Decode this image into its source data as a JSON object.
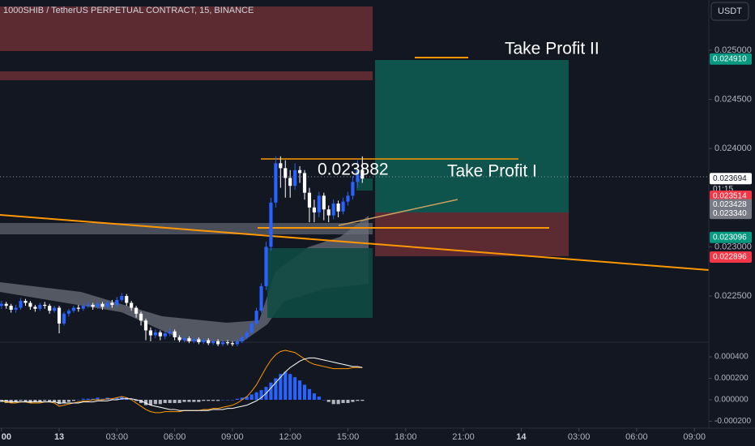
{
  "header": {
    "title": "1000SHIB / TetherUS PERPETUAL CONTRACT, 15, BINANCE",
    "currency": "USDT"
  },
  "chart_data": [
    {
      "type": "candlestick",
      "up_color": "#2962ff",
      "down_color": "#ffffff",
      "open": [
        0.0224,
        0.02242,
        0.0224,
        0.02236,
        0.02238,
        0.02245,
        0.02243,
        0.02239,
        0.02237,
        0.02241,
        0.0224,
        0.02235,
        0.02238,
        0.02222,
        0.02232,
        0.02235,
        0.02238,
        0.02237,
        0.0224,
        0.02241,
        0.02239,
        0.02242,
        0.02239,
        0.02243,
        0.02241,
        0.02246,
        0.0225,
        0.02243,
        0.02238,
        0.02232,
        0.02225,
        0.02215,
        0.0221,
        0.02213,
        0.02209,
        0.02212,
        0.02214,
        0.02208,
        0.02205,
        0.02207,
        0.02204,
        0.02206,
        0.02203,
        0.02205,
        0.02202,
        0.02204,
        0.02201,
        0.02203,
        0.02202,
        0.02201,
        0.02204,
        0.02208,
        0.02213,
        0.02222,
        0.02235,
        0.0226,
        0.023,
        0.02345,
        0.02385,
        0.0238,
        0.0237,
        0.02362,
        0.02378,
        0.02375,
        0.02355,
        0.0234,
        0.02335,
        0.02352,
        0.02338,
        0.02332,
        0.02344,
        0.02336,
        0.02346,
        0.02352,
        0.02366,
        0.02378
      ],
      "high": [
        0.02245,
        0.02244,
        0.02242,
        0.02241,
        0.02248,
        0.02247,
        0.02245,
        0.02241,
        0.02243,
        0.02244,
        0.02242,
        0.0224,
        0.0224,
        0.02234,
        0.02237,
        0.0224,
        0.02241,
        0.02242,
        0.02244,
        0.02243,
        0.02244,
        0.02244,
        0.02245,
        0.02246,
        0.02249,
        0.02253,
        0.02252,
        0.02245,
        0.0224,
        0.02234,
        0.02227,
        0.02218,
        0.02216,
        0.02215,
        0.02214,
        0.02217,
        0.02216,
        0.0221,
        0.02209,
        0.02209,
        0.02208,
        0.02208,
        0.02207,
        0.02207,
        0.02206,
        0.02206,
        0.02205,
        0.02205,
        0.02204,
        0.02206,
        0.0221,
        0.02215,
        0.02224,
        0.02238,
        0.02263,
        0.02305,
        0.0235,
        0.02392,
        0.02392,
        0.02388,
        0.02378,
        0.02385,
        0.02382,
        0.02378,
        0.0236,
        0.02348,
        0.02356,
        0.02355,
        0.02342,
        0.02348,
        0.02347,
        0.0235,
        0.02356,
        0.02372,
        0.02388,
        0.02392
      ],
      "low": [
        0.02237,
        0.02237,
        0.02233,
        0.02233,
        0.02236,
        0.0224,
        0.02236,
        0.02234,
        0.02235,
        0.02237,
        0.02232,
        0.02233,
        0.02212,
        0.0222,
        0.02229,
        0.02233,
        0.02234,
        0.02235,
        0.02238,
        0.02236,
        0.02237,
        0.02236,
        0.02237,
        0.02238,
        0.02239,
        0.02244,
        0.0224,
        0.02235,
        0.02228,
        0.0222,
        0.02205,
        0.02204,
        0.02207,
        0.02205,
        0.02206,
        0.02209,
        0.02205,
        0.02203,
        0.02203,
        0.02202,
        0.02202,
        0.02201,
        0.02201,
        0.022,
        0.022,
        0.02199,
        0.02199,
        0.022,
        0.02199,
        0.02199,
        0.02202,
        0.02206,
        0.02211,
        0.0222,
        0.02233,
        0.02256,
        0.02296,
        0.0234,
        0.0236,
        0.0235,
        0.0235,
        0.02358,
        0.02365,
        0.02348,
        0.02325,
        0.02325,
        0.0233,
        0.02327,
        0.02325,
        0.02328,
        0.0233,
        0.02333,
        0.02342,
        0.02348,
        0.0236,
        0.02365
      ],
      "close": [
        0.02242,
        0.0224,
        0.02236,
        0.02238,
        0.02245,
        0.02243,
        0.02239,
        0.02237,
        0.02241,
        0.0224,
        0.02235,
        0.02238,
        0.02222,
        0.02232,
        0.02235,
        0.02238,
        0.02237,
        0.0224,
        0.02241,
        0.02239,
        0.02242,
        0.02239,
        0.02243,
        0.02241,
        0.02246,
        0.0225,
        0.02243,
        0.02238,
        0.02232,
        0.02225,
        0.02215,
        0.0221,
        0.02213,
        0.02209,
        0.02212,
        0.02214,
        0.02208,
        0.02205,
        0.02207,
        0.02204,
        0.02206,
        0.02203,
        0.02205,
        0.02202,
        0.02204,
        0.02201,
        0.02203,
        0.02202,
        0.02201,
        0.02204,
        0.02208,
        0.02213,
        0.02222,
        0.02235,
        0.0226,
        0.023,
        0.02345,
        0.02385,
        0.0238,
        0.0237,
        0.02362,
        0.02378,
        0.02375,
        0.02355,
        0.0234,
        0.02335,
        0.02352,
        0.02338,
        0.02332,
        0.02344,
        0.02336,
        0.02346,
        0.02352,
        0.02366,
        0.02378,
        0.023694
      ],
      "xlim": [
        -0.3,
        147
      ],
      "xticks": [
        {
          "value": 0,
          "label": "00"
        },
        {
          "value": 12,
          "label": "13"
        },
        {
          "value": 24,
          "label": "03:00"
        },
        {
          "value": 36,
          "label": "06:00"
        },
        {
          "value": 48,
          "label": "09:00"
        },
        {
          "value": 60,
          "label": "12:00"
        },
        {
          "value": 72,
          "label": "15:00"
        },
        {
          "value": 84,
          "label": "18:00"
        },
        {
          "value": 96,
          "label": "21:00"
        },
        {
          "value": 108,
          "label": "14"
        },
        {
          "value": 120,
          "label": "03:00"
        },
        {
          "value": 132,
          "label": "06:00"
        },
        {
          "value": 144,
          "label": "09:00"
        }
      ],
      "ylim": [
        0.02203,
        0.02551
      ],
      "yticks": [
        {
          "value": 0.025,
          "label": "0.025000"
        },
        {
          "value": 0.0245,
          "label": "0.024500"
        },
        {
          "value": 0.024,
          "label": "0.024000"
        },
        {
          "value": 0.023,
          "label": "0.023000"
        },
        {
          "value": 0.0225,
          "label": "0.022500"
        }
      ],
      "price_tags": [
        {
          "value": 0.02491,
          "label": "0.024910",
          "color": "#089981"
        },
        {
          "value": 0.023694,
          "label": "0.023694",
          "color": "#ffffff"
        },
        {
          "value": 0.023514,
          "label": "0.023514",
          "color": "#f23645"
        },
        {
          "value": 0.023428,
          "label": "0.023428",
          "color": "#787b86"
        },
        {
          "value": 0.02334,
          "label": "0.023340",
          "color": "#787b86"
        },
        {
          "value": 0.023096,
          "label": "0.023096",
          "color": "#089981"
        },
        {
          "value": 0.022896,
          "label": "0.022896",
          "color": "#f23645"
        }
      ],
      "countdown": "01:15",
      "annotations": [
        "Take Profit II",
        "0.023882",
        "Take Profit I"
      ]
    },
    {
      "type": "macd",
      "histogram": {
        "color_up": "#2962ff",
        "color_down": "#b2b5be",
        "values": [
          -2e-05,
          -3e-05,
          -3e-05,
          -2e-05,
          -1e-05,
          -2e-05,
          -3e-05,
          -2e-05,
          -2e-05,
          -1e-05,
          -2e-05,
          -2e-05,
          -4e-05,
          -3e-05,
          -2e-05,
          -1e-05,
          0,
          1e-05,
          1e-05,
          1e-05,
          2e-05,
          1e-05,
          2e-05,
          1e-05,
          2e-05,
          3e-05,
          2e-05,
          1e-05,
          -1e-05,
          -3e-05,
          -5e-05,
          -5e-05,
          -4e-05,
          -4e-05,
          -3e-05,
          -3e-05,
          -3e-05,
          -3e-05,
          -2e-05,
          -2e-05,
          -2e-05,
          -2e-05,
          -1e-05,
          -1e-05,
          -1e-05,
          -1e-05,
          0,
          0,
          0,
          1e-05,
          2e-05,
          3e-05,
          5e-05,
          7e-05,
          9e-05,
          0.00012,
          0.00016,
          0.0002,
          0.00024,
          0.00026,
          0.00024,
          0.00021,
          0.00018,
          0.00014,
          0.0001,
          6e-05,
          3e-05,
          0,
          -2e-05,
          -4e-05,
          -4e-05,
          -3e-05,
          -3e-05,
          -2e-05,
          -1e-05,
          -1e-05
        ]
      },
      "series": [
        {
          "color": "#ff9800",
          "values": [
            -1e-05,
            -2e-05,
            -3e-05,
            -3e-05,
            -2e-05,
            -2e-05,
            -3e-05,
            -3e-05,
            -3e-05,
            -2e-05,
            -2e-05,
            -3e-05,
            -6e-05,
            -5e-05,
            -4e-05,
            -3e-05,
            -2e-05,
            -1e-05,
            -1e-05,
            0,
            0,
            0,
            1e-05,
            1e-05,
            2e-05,
            3e-05,
            2e-05,
            0,
            -3e-05,
            -6e-05,
            -9e-05,
            -0.00011,
            -0.00012,
            -0.00012,
            -0.00011,
            -0.00011,
            -0.00011,
            -0.00011,
            -0.0001,
            -0.0001,
            -0.0001,
            -0.0001,
            -9e-05,
            -9e-05,
            -8e-05,
            -8e-05,
            -7e-05,
            -6e-05,
            -5e-05,
            -3e-05,
            0,
            3e-05,
            8e-05,
            0.00014,
            0.00022,
            0.0003,
            0.00037,
            0.00042,
            0.00045,
            0.00046,
            0.00045,
            0.00044,
            0.00041,
            0.00038,
            0.00035,
            0.00033,
            0.00032,
            0.00031,
            0.0003,
            0.00029,
            0.00029,
            0.00029,
            0.00029,
            0.0003,
            0.0003,
            0.0003
          ]
        },
        {
          "color": "#ffffff",
          "values": [
            -1e-05,
            -1e-05,
            -2e-05,
            -2e-05,
            -2e-05,
            -2e-05,
            -2e-05,
            -2e-05,
            -2e-05,
            -2e-05,
            -2e-05,
            -2e-05,
            -3e-05,
            -3e-05,
            -3e-05,
            -3e-05,
            -3e-05,
            -2e-05,
            -2e-05,
            -2e-05,
            -1e-05,
            -1e-05,
            -1e-05,
            0,
            0,
            1e-05,
            1e-05,
            1e-05,
            0,
            -1e-05,
            -3e-05,
            -5e-05,
            -6e-05,
            -7e-05,
            -8e-05,
            -9e-05,
            -9e-05,
            -0.0001,
            -0.0001,
            -0.0001,
            -0.0001,
            -0.0001,
            -0.0001,
            -0.0001,
            -9e-05,
            -9e-05,
            -9e-05,
            -8e-05,
            -8e-05,
            -7e-05,
            -6e-05,
            -5e-05,
            -3e-05,
            -1e-05,
            2e-05,
            6e-05,
            0.00011,
            0.00016,
            0.00021,
            0.00026,
            0.0003,
            0.00033,
            0.00036,
            0.00038,
            0.00039,
            0.00039,
            0.00038,
            0.00037,
            0.00036,
            0.00035,
            0.00034,
            0.00033,
            0.00032,
            0.00031,
            0.00031,
            0.0003
          ]
        }
      ],
      "ylim": [
        -0.000264,
        0.000536
      ],
      "yticks": [
        {
          "value": 0.0004,
          "label": "0.000400"
        },
        {
          "value": 0.0002,
          "label": "0.000200"
        },
        {
          "value": 0,
          "label": "0.000000"
        },
        {
          "value": -0.0002,
          "label": "-0.000200"
        }
      ]
    }
  ]
}
